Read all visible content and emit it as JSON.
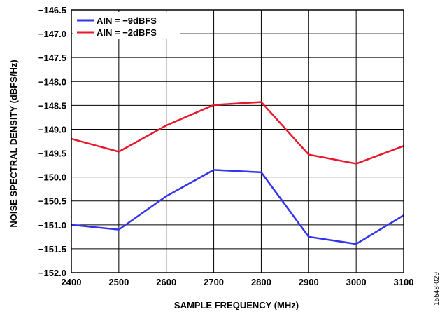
{
  "chart_data": {
    "type": "line",
    "xlabel": "SAMPLE FREQUENCY (MHz)",
    "ylabel": "NOISE SPECTRAL DENSITY (dBFS/Hz)",
    "xlim": [
      2400,
      3100
    ],
    "ylim": [
      -152.0,
      -146.5
    ],
    "x_ticks": [
      "2400",
      "2500",
      "2600",
      "2700",
      "2800",
      "2900",
      "3000",
      "3100"
    ],
    "y_ticks": [
      "−146.5",
      "−147.0",
      "−147.5",
      "−148.0",
      "−148.5",
      "−149.0",
      "−149.5",
      "−150.0",
      "−150.5",
      "−151.0",
      "−151.5",
      "−152.0"
    ],
    "x": [
      2400,
      2500,
      2600,
      2700,
      2800,
      2900,
      3000,
      3100
    ],
    "series": [
      {
        "name": "AIN = −9dBFS",
        "color": "#3333ee",
        "values": [
          -151.0,
          -151.1,
          -150.4,
          -149.85,
          -149.9,
          -151.25,
          -151.4,
          -150.8
        ]
      },
      {
        "name": "AIN = −2dBFS",
        "color": "#e8192c",
        "values": [
          -149.2,
          -149.47,
          -148.92,
          -148.49,
          -148.43,
          -149.53,
          -149.72,
          -149.35
        ]
      }
    ],
    "grid": true,
    "legend_position": "top-left"
  },
  "figure_id": "15548-029"
}
